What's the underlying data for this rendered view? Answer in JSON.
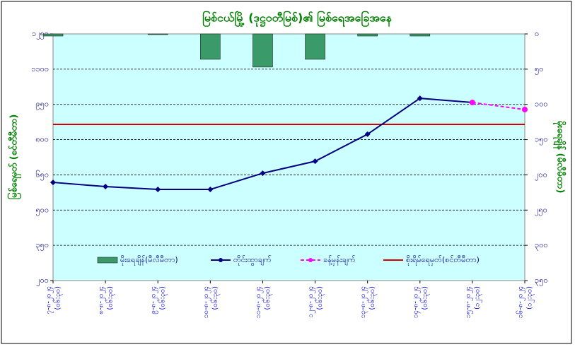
{
  "chart_data": {
    "type": "combo",
    "title": "မြစ်ငယ်မြို့ (ဒုဋ္ဌဝတီမြစ်)၏ မြစ်ရေအခြေအနေ",
    "y_label": "မြစ်ရေမှတ် (စင်တီမီတာ)",
    "y2_label": "မိုးရေချိန် (မီလီမီတာ)",
    "categories": [
      [
        "၇-၈-၂၀၂၄",
        "(၀၆:၃၀)"
      ],
      [
        "၈-၈-၂၀၂၄",
        "(၀၆:၃၀)"
      ],
      [
        "၉-၈-၂၀၂၄",
        "(၀၆:၃၀)"
      ],
      [
        "၁၀-၈-၂၀၂၄",
        "(၀၆:၃၀)"
      ],
      [
        "၁၁-၈-၂၀၂၄",
        "(၀၆:၃၀)"
      ],
      [
        "၁၂-၈-၂၀၂၄",
        "(၀၆:၃၀)"
      ],
      [
        "၁၃-၈-၂၀၂၄",
        "(၀၆:၃၀)"
      ],
      [
        "၁၄-၈-၂၀၂၄",
        "(၀၆:၃၀)"
      ],
      [
        "၁၅-၈-၂၀၂၄",
        "(၁၂:၃၀)"
      ],
      [
        "၁၆-၈-၂၀၂၄",
        "(၁၂:၃၀)"
      ]
    ],
    "series": [
      {
        "name": "မိုးရေချိန်(မီလီမီတာ)",
        "type": "bar",
        "axis": "y2",
        "color": "#3a9a6a",
        "values": [
          3,
          0,
          1,
          36,
          47,
          36,
          3,
          3,
          null,
          null
        ]
      },
      {
        "name": "တိုင်းထွာချက်",
        "type": "line",
        "color": "#000080",
        "values": [
          618,
          600,
          588,
          588,
          657,
          708,
          823,
          976,
          958,
          null
        ]
      },
      {
        "name": "ခန့်မှန်းချက်",
        "type": "line",
        "dashed": true,
        "color": "#ff00ff",
        "values": [
          null,
          null,
          null,
          null,
          null,
          null,
          null,
          null,
          958,
          928
        ]
      }
    ],
    "danger_level": {
      "name": "စိုးရိမ်ရေမှတ်(စင်တီမီတာ)",
      "value": 865,
      "color": "#d00000"
    },
    "ylim": [
      200,
      1250
    ],
    "yticks": [
      {
        "value": 200,
        "label": "၂၀၀"
      },
      {
        "value": 350,
        "label": "၃၅၀"
      },
      {
        "value": 500,
        "label": "၅၀၀"
      },
      {
        "value": 650,
        "label": "၆၅၀"
      },
      {
        "value": 800,
        "label": "၈၀၀"
      },
      {
        "value": 950,
        "label": "၉၅၀"
      },
      {
        "value": 1100,
        "label": "၁၁၀၀"
      },
      {
        "value": 1250,
        "label": "၁၂၅၀"
      }
    ],
    "y2lim": [
      350,
      0
    ],
    "y2ticks": [
      {
        "value": 0,
        "label": "၀"
      },
      {
        "value": 50,
        "label": "၅၀"
      },
      {
        "value": 100,
        "label": "၁၀၀"
      },
      {
        "value": 150,
        "label": "၁၅၀"
      },
      {
        "value": 200,
        "label": "၂၀၀"
      },
      {
        "value": 250,
        "label": "၂၅၀"
      },
      {
        "value": 300,
        "label": "၃၀၀"
      },
      {
        "value": 350,
        "label": "၃၅၀"
      }
    ],
    "grid": true
  }
}
